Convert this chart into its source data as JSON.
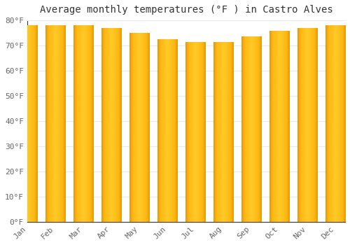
{
  "title": "Average monthly temperatures (°F ) in Castro Alves",
  "months": [
    "Jan",
    "Feb",
    "Mar",
    "Apr",
    "May",
    "Jun",
    "Jul",
    "Aug",
    "Sep",
    "Oct",
    "Nov",
    "Dec"
  ],
  "values": [
    78.1,
    78.1,
    78.0,
    76.8,
    74.8,
    72.3,
    71.2,
    71.4,
    73.6,
    75.8,
    76.8,
    77.9
  ],
  "ylim": [
    0,
    80
  ],
  "yticks": [
    0,
    10,
    20,
    30,
    40,
    50,
    60,
    70,
    80
  ],
  "ytick_labels": [
    "0°F",
    "10°F",
    "20°F",
    "30°F",
    "40°F",
    "50°F",
    "60°F",
    "70°F",
    "80°F"
  ],
  "bg_color": "#ffffff",
  "plot_bg_color": "#ffffff",
  "grid_color": "#e8e8e8",
  "title_fontsize": 10,
  "tick_fontsize": 8,
  "bar_main_color": "#FDB813",
  "bar_left_color": "#E8960A",
  "bar_right_color": "#E89A0A",
  "bar_center_color": "#FFCA28",
  "bar_width": 0.7,
  "spine_color": "#333333",
  "tick_color": "#666666"
}
